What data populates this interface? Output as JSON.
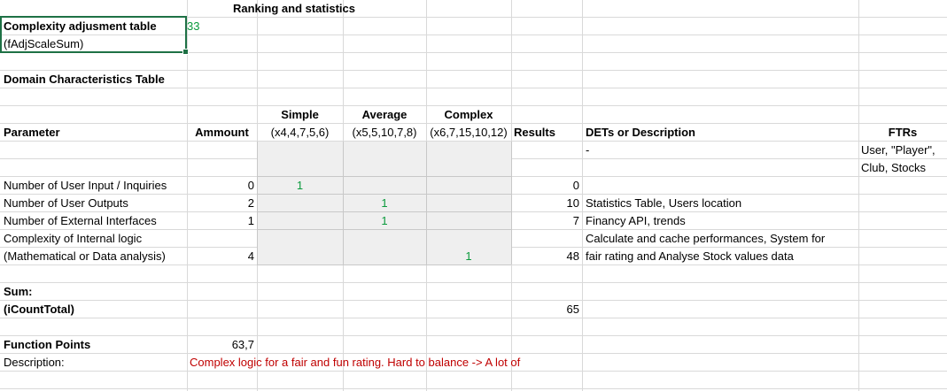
{
  "header": {
    "ranking_title": "Ranking and statistics"
  },
  "complexity": {
    "label_line1": "Complexity adjusment table",
    "label_line2": "(fAdjScaleSum)",
    "value": "33"
  },
  "domain": {
    "title": "Domain Characteristics Table",
    "columns": {
      "parameter": "Parameter",
      "amount": "Ammount",
      "simple": "Simple",
      "simple_weights": "(x4,4,7,5,6)",
      "average": "Average",
      "average_weights": "(x5,5,10,7,8)",
      "complex": "Complex",
      "complex_weights": "(x6,7,15,10,12)",
      "results": "Results",
      "dets": "DETs or Description",
      "ftrs": "FTRs"
    },
    "dash": "-",
    "ftrs_value": [
      "User, \"Player\",",
      "Club, Stocks"
    ],
    "rows": [
      {
        "name": "Number of User Input / Inquiries",
        "amount": "0",
        "simple": "1",
        "average": "",
        "complex": "",
        "result": "0",
        "desc": ""
      },
      {
        "name": "Number of User Outputs",
        "amount": "2",
        "simple": "",
        "average": "1",
        "complex": "",
        "result": "10",
        "desc": "Statistics Table, Users location"
      },
      {
        "name": "Number of External Interfaces",
        "amount": "1",
        "simple": "",
        "average": "1",
        "complex": "",
        "result": "7",
        "desc": "Financy API, trends"
      },
      {
        "name_line1": "Complexity of Internal logic",
        "name_line2": "(Mathematical or Data analysis)",
        "amount": "4",
        "simple": "",
        "average": "",
        "complex": "1",
        "result": "48",
        "desc_line1": "Calculate and cache performances, System for",
        "desc_line2": "fair rating and Analyse Stock values data"
      }
    ]
  },
  "sum": {
    "label_line1": "Sum:",
    "label_line2": "(iCountTotal)",
    "value": "65"
  },
  "function_points": {
    "label": "Function Points",
    "value": "63,7",
    "desc_label": "Description:",
    "desc_value": "Complex logic for a fair and fun rating. Hard to balance -> A lot of"
  },
  "colors": {
    "green_text": "#0a9a3c",
    "red_text": "#c00000",
    "shade": "#efefef",
    "gridline": "#d9d9d9",
    "selection": "#1e7145"
  }
}
